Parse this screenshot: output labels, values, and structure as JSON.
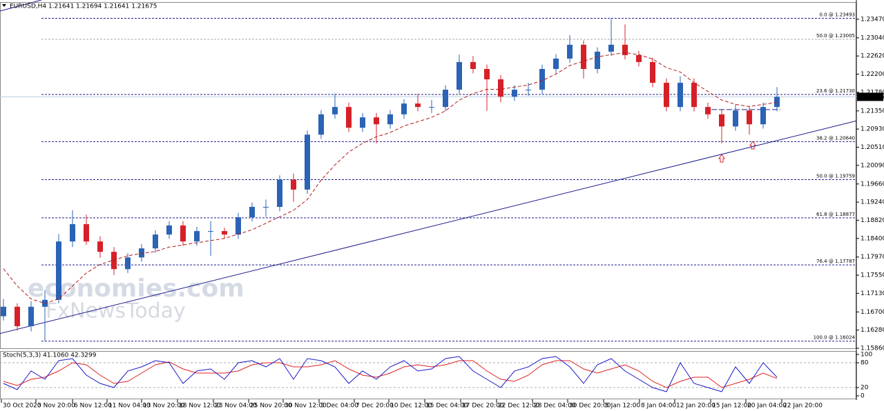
{
  "chart_data": {
    "type": "candlestick",
    "title": "EURUSD,H4  1.21641 1.21694 1.21641 1.21675",
    "watermark": [
      "economies.com",
      "FxNewsToday"
    ],
    "bull_color": "#2b63b5",
    "bear_color": "#d62028",
    "xlim": [
      -0.25,
      61.75
    ],
    "xticks": [
      {
        "value": -0.15,
        "label": "30 Oct 2020"
      },
      {
        "value": 2.35,
        "label": "3 Nov 20:00"
      },
      {
        "value": 5.0,
        "label": "6 Nov 12:00"
      },
      {
        "value": 7.5,
        "label": "11 Nov 04:00"
      },
      {
        "value": 10.0,
        "label": "13 Nov 20:00"
      },
      {
        "value": 12.6,
        "label": "18 Nov 12:00"
      },
      {
        "value": 15.2,
        "label": "23 Nov 04:00"
      },
      {
        "value": 17.75,
        "label": "25 Nov 20:00"
      },
      {
        "value": 20.25,
        "label": "30 Nov 12:00"
      },
      {
        "value": 22.85,
        "label": "3 Dec 04:00"
      },
      {
        "value": 25.4,
        "label": "7 Dec 20:00"
      },
      {
        "value": 27.9,
        "label": "10 Dec 12:00"
      },
      {
        "value": 30.5,
        "label": "15 Dec 04:00"
      },
      {
        "value": 33.1,
        "label": "17 Dec 20:00"
      },
      {
        "value": 35.7,
        "label": "22 Dec 12:00"
      },
      {
        "value": 38.3,
        "label": "28 Dec 04:00"
      },
      {
        "value": 40.85,
        "label": "30 Dec 20:00"
      },
      {
        "value": 43.45,
        "label": "5 Jan 12:00"
      },
      {
        "value": 46.05,
        "label": "8 Jan 04:00"
      },
      {
        "value": 48.6,
        "label": "12 Jan 20:00"
      },
      {
        "value": 51.2,
        "label": "15 Jan 12:00"
      },
      {
        "value": 53.75,
        "label": "20 Jan 04:00"
      },
      {
        "value": 56.35,
        "label": "22 Jan 20:00"
      }
    ],
    "ylim": [
      1.1586,
      1.23835
    ],
    "yticks": [
      {
        "value": 1.2347,
        "label": "1.23470"
      },
      {
        "value": 1.2304,
        "label": "1.23040"
      },
      {
        "value": 1.2262,
        "label": "1.22620"
      },
      {
        "value": 1.222,
        "label": "1.22200"
      },
      {
        "value": 1.2178,
        "label": "1.21780"
      },
      {
        "value": 1.2135,
        "label": "1.21350"
      },
      {
        "value": 1.2093,
        "label": "1.20930"
      },
      {
        "value": 1.2051,
        "label": "1.20510"
      },
      {
        "value": 1.2009,
        "label": "1.20090"
      },
      {
        "value": 1.1966,
        "label": "1.19660"
      },
      {
        "value": 1.1924,
        "label": "1.19240"
      },
      {
        "value": 1.1882,
        "label": "1.18820"
      },
      {
        "value": 1.184,
        "label": "1.18400"
      },
      {
        "value": 1.1797,
        "label": "1.17970"
      },
      {
        "value": 1.1755,
        "label": "1.17550"
      },
      {
        "value": 1.1713,
        "label": "1.17130"
      },
      {
        "value": 1.167,
        "label": "1.16700"
      },
      {
        "value": 1.1628,
        "label": "1.16280"
      },
      {
        "value": 1.1586,
        "label": "1.15860"
      }
    ],
    "current_price": 1.21675,
    "ohlc": [
      [
        1.166,
        1.17,
        1.165,
        1.1682
      ],
      [
        1.1682,
        1.169,
        1.1627,
        1.1637
      ],
      [
        1.1637,
        1.1695,
        1.1625,
        1.1682
      ],
      [
        1.1682,
        1.172,
        1.1603,
        1.1698
      ],
      [
        1.1698,
        1.185,
        1.169,
        1.1833
      ],
      [
        1.1833,
        1.1905,
        1.182,
        1.1873
      ],
      [
        1.1873,
        1.1895,
        1.1825,
        1.1833
      ],
      [
        1.1833,
        1.1845,
        1.1795,
        1.1809
      ],
      [
        1.1809,
        1.182,
        1.1755,
        1.1769
      ],
      [
        1.1769,
        1.1806,
        1.176,
        1.1796
      ],
      [
        1.1796,
        1.1827,
        1.1786,
        1.1817
      ],
      [
        1.1817,
        1.1859,
        1.1807,
        1.1849
      ],
      [
        1.1849,
        1.188,
        1.1839,
        1.187
      ],
      [
        1.187,
        1.188,
        1.1823,
        1.1833
      ],
      [
        1.1833,
        1.1867,
        1.1823,
        1.1857
      ],
      [
        1.1857,
        1.188,
        1.18,
        1.1857
      ],
      [
        1.1857,
        1.1865,
        1.1839,
        1.1849
      ],
      [
        1.1849,
        1.1899,
        1.1839,
        1.1889
      ],
      [
        1.1889,
        1.1923,
        1.1879,
        1.1913
      ],
      [
        1.1913,
        1.193,
        1.189,
        1.1913
      ],
      [
        1.1913,
        1.1986,
        1.1903,
        1.1976
      ],
      [
        1.1976,
        1.199,
        1.1925,
        1.1953
      ],
      [
        1.1953,
        1.209,
        1.1943,
        1.208
      ],
      [
        1.208,
        1.2137,
        1.207,
        1.2127
      ],
      [
        1.2127,
        1.2175,
        1.2117,
        1.2144
      ],
      [
        1.2144,
        1.2154,
        1.2086,
        1.2096
      ],
      [
        1.2096,
        1.213,
        1.2086,
        1.212
      ],
      [
        1.212,
        1.213,
        1.206,
        1.2104
      ],
      [
        1.2104,
        1.2137,
        1.2094,
        1.2127
      ],
      [
        1.2127,
        1.2162,
        1.2117,
        1.2152
      ],
      [
        1.2152,
        1.2175,
        1.2134,
        1.2144
      ],
      [
        1.2144,
        1.216,
        1.213,
        1.2144
      ],
      [
        1.2144,
        1.2194,
        1.2134,
        1.2184
      ],
      [
        1.2184,
        1.2265,
        1.2174,
        1.2248
      ],
      [
        1.2248,
        1.2262,
        1.2222,
        1.2232
      ],
      [
        1.2232,
        1.2242,
        1.2135,
        1.2208
      ],
      [
        1.2208,
        1.2218,
        1.2155,
        1.2168
      ],
      [
        1.2168,
        1.2194,
        1.2158,
        1.2184
      ],
      [
        1.2184,
        1.22,
        1.217,
        1.2184
      ],
      [
        1.2184,
        1.2242,
        1.2174,
        1.2232
      ],
      [
        1.2232,
        1.2266,
        1.2222,
        1.2256
      ],
      [
        1.2256,
        1.231,
        1.2246,
        1.2288
      ],
      [
        1.2288,
        1.2298,
        1.221,
        1.2232
      ],
      [
        1.2232,
        1.2282,
        1.2222,
        1.2272
      ],
      [
        1.2272,
        1.2349,
        1.2262,
        1.2288
      ],
      [
        1.2288,
        1.2335,
        1.2254,
        1.2264
      ],
      [
        1.2264,
        1.2274,
        1.2238,
        1.2248
      ],
      [
        1.2248,
        1.2258,
        1.219,
        1.22
      ],
      [
        1.22,
        1.221,
        1.2134,
        1.2144
      ],
      [
        1.2144,
        1.2215,
        1.2134,
        1.22
      ],
      [
        1.22,
        1.221,
        1.2134,
        1.2144
      ],
      [
        1.2144,
        1.2154,
        1.2117,
        1.2127
      ],
      [
        1.2127,
        1.2137,
        1.206,
        1.2099
      ],
      [
        1.2099,
        1.215,
        1.2089,
        1.2136
      ],
      [
        1.2136,
        1.2146,
        1.208,
        1.2104
      ],
      [
        1.2104,
        1.2154,
        1.2094,
        1.2144
      ],
      [
        1.2144,
        1.219,
        1.2134,
        1.21675
      ]
    ],
    "ma": {
      "color": "#b01818",
      "values": [
        1.177,
        1.173,
        1.17,
        1.169,
        1.17,
        1.173,
        1.176,
        1.178,
        1.179,
        1.18,
        1.1805,
        1.181,
        1.182,
        1.1825,
        1.183,
        1.1835,
        1.184,
        1.185,
        1.186,
        1.1875,
        1.189,
        1.1905,
        1.193,
        1.1975,
        1.201,
        1.204,
        1.206,
        1.2075,
        1.2085,
        1.21,
        1.211,
        1.212,
        1.2135,
        1.216,
        1.2175,
        1.2185,
        1.2185,
        1.219,
        1.2195,
        1.2205,
        1.222,
        1.224,
        1.225,
        1.226,
        1.2265,
        1.227,
        1.2265,
        1.2255,
        1.2235,
        1.2225,
        1.22,
        1.218,
        1.216,
        1.215,
        1.2145,
        1.215,
        1.2155
      ]
    },
    "fib_levels": [
      {
        "label": "0.0 @ 1.23493",
        "value": 1.23493,
        "color": "#1c1c8c"
      },
      {
        "label": "50.0 @ 1.23005",
        "value": 1.23005,
        "color": "#a8a8a8"
      },
      {
        "label": "23.6 @ 1.21730",
        "value": 1.2173,
        "color": "#1c1c8c"
      },
      {
        "label": "38.2 @ 1.20640",
        "value": 1.2064,
        "color": "#1c1c8c"
      },
      {
        "label": "50.0 @ 1.19759",
        "value": 1.19759,
        "color": "#1c1c8c"
      },
      {
        "label": "61.8 @ 1.18877",
        "value": 1.18877,
        "color": "#1c1c8c"
      },
      {
        "label": "76.4 @ 1.17787",
        "value": 1.17787,
        "color": "#1c1c8c"
      },
      {
        "label": "100.0 @ 1.16024",
        "value": 1.16024,
        "color": "#1c1c8c"
      }
    ],
    "trend_line": {
      "start": [
        -0.25,
        1.162
      ],
      "end": [
        61.75,
        1.2112
      ],
      "color": "#1c1c8c"
    },
    "neckline": {
      "start": [
        51.25,
        1.2138
      ],
      "end": [
        56.25,
        1.2138
      ],
      "color": "#1c1c8c"
    },
    "stoch": {
      "title": "Stoch(5,3,3) 41.1060 42.3299",
      "ylim": [
        -6.7,
        108.3
      ],
      "yticks": [
        100,
        80,
        20,
        0
      ],
      "levels": [
        80,
        20
      ],
      "main": {
        "color": "#1818c8",
        "values": [
          30,
          15,
          60,
          40,
          85,
          90,
          50,
          30,
          20,
          60,
          70,
          85,
          80,
          30,
          60,
          65,
          40,
          80,
          85,
          70,
          90,
          40,
          90,
          85,
          70,
          30,
          60,
          40,
          70,
          85,
          60,
          65,
          90,
          95,
          60,
          40,
          20,
          60,
          70,
          90,
          95,
          70,
          30,
          75,
          90,
          60,
          40,
          20,
          10,
          80,
          30,
          20,
          10,
          70,
          30,
          80,
          45
        ]
      },
      "signal": {
        "color": "#e02020",
        "values": [
          35,
          25,
          40,
          45,
          60,
          80,
          75,
          50,
          30,
          35,
          55,
          75,
          82,
          65,
          55,
          55,
          55,
          60,
          75,
          80,
          80,
          70,
          70,
          75,
          85,
          65,
          50,
          45,
          55,
          70,
          75,
          70,
          75,
          85,
          85,
          60,
          40,
          35,
          50,
          75,
          85,
          85,
          65,
          55,
          65,
          75,
          60,
          35,
          20,
          35,
          45,
          45,
          20,
          30,
          40,
          55,
          42
        ]
      }
    }
  }
}
